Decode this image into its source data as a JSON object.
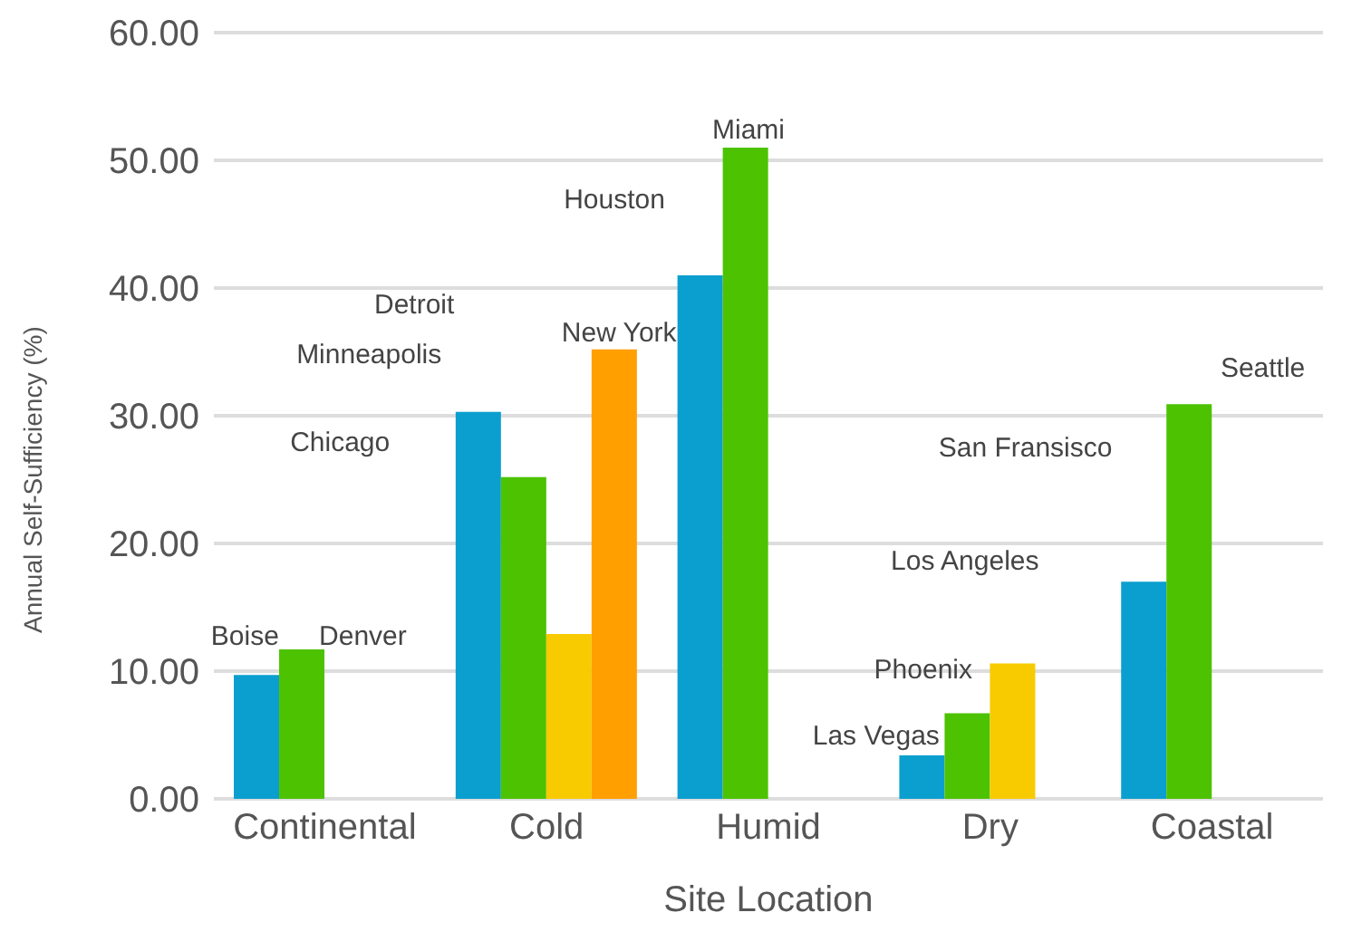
{
  "chart_data": {
    "type": "bar",
    "xlabel": "Site Location",
    "ylabel": "Annual Self-Sufficiency (%)",
    "categories": [
      "Continental",
      "Cold",
      "Humid",
      "Dry",
      "Coastal"
    ],
    "series": [
      {
        "color": "#0a9fcf",
        "values": [
          9.7,
          30.3,
          41.0,
          3.4,
          17.0
        ]
      },
      {
        "color": "#4cc200",
        "values": [
          11.7,
          25.2,
          51.0,
          6.7,
          30.9
        ]
      },
      {
        "color": "#f7cb00",
        "values": [
          null,
          12.9,
          null,
          10.6,
          null
        ]
      },
      {
        "color": "#ff9f00",
        "values": [
          null,
          35.2,
          null,
          null,
          null
        ]
      }
    ],
    "ylim": [
      0,
      60
    ],
    "yticks": [
      {
        "value": 0,
        "label": "0.00"
      },
      {
        "value": 10,
        "label": "10.00"
      },
      {
        "value": 20,
        "label": "20.00"
      },
      {
        "value": 30,
        "label": "30.00"
      },
      {
        "value": 40,
        "label": "40.00"
      },
      {
        "value": 50,
        "label": "50.00"
      },
      {
        "value": 60,
        "label": "60.00"
      }
    ],
    "grid": "y",
    "legend": false,
    "annotations": [
      "Boise",
      "Denver",
      "Chicago",
      "Minneapolis",
      "Detroit",
      "New York",
      "Houston",
      "Miami",
      "Las Vegas",
      "Phoenix",
      "Los Angeles",
      "San Fransisco",
      "Seattle"
    ]
  }
}
